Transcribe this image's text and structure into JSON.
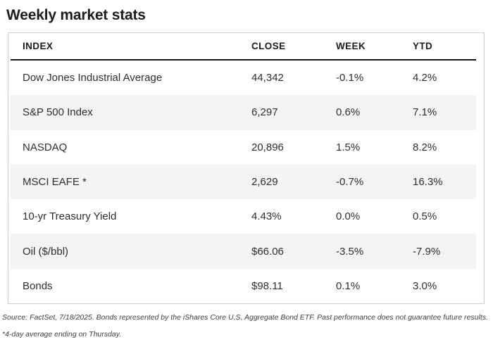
{
  "title": "Weekly market stats",
  "chart_data": {
    "type": "table",
    "title": "Weekly market stats",
    "columns": [
      "INDEX",
      "CLOSE",
      "WEEK",
      "YTD"
    ],
    "rows": [
      [
        "Dow Jones Industrial Average",
        "44,342",
        "-0.1%",
        "4.2%"
      ],
      [
        "S&P 500 Index",
        "6,297",
        "0.6%",
        "7.1%"
      ],
      [
        "NASDAQ",
        "20,896",
        "1.5%",
        "8.2%"
      ],
      [
        "MSCI EAFE *",
        "2,629",
        "-0.7%",
        "16.3%"
      ],
      [
        "10-yr Treasury Yield",
        "4.43%",
        "0.0%",
        "0.5%"
      ],
      [
        "Oil ($/bbl)",
        "$66.06",
        "-3.5%",
        "-7.9%"
      ],
      [
        "Bonds",
        "$98.11",
        "0.1%",
        "3.0%"
      ]
    ],
    "striped_row_indices": [
      1,
      3,
      5
    ],
    "legend_position": "none",
    "grid": false
  },
  "footer": "Source: FactSet, 7/18/2025. Bonds represented by the iShares Core U.S. Aggregate Bond ETF. Past performance does not guarantee future results. *4-day average ending on Thursday.",
  "colors": {
    "background": "#ffffff",
    "title": "#1d1d1d",
    "text": "#2e2e2e",
    "stripe": "#f4f4f4",
    "border": "#cccccc",
    "rule": "#141414",
    "footer": "#3d3d3d"
  }
}
